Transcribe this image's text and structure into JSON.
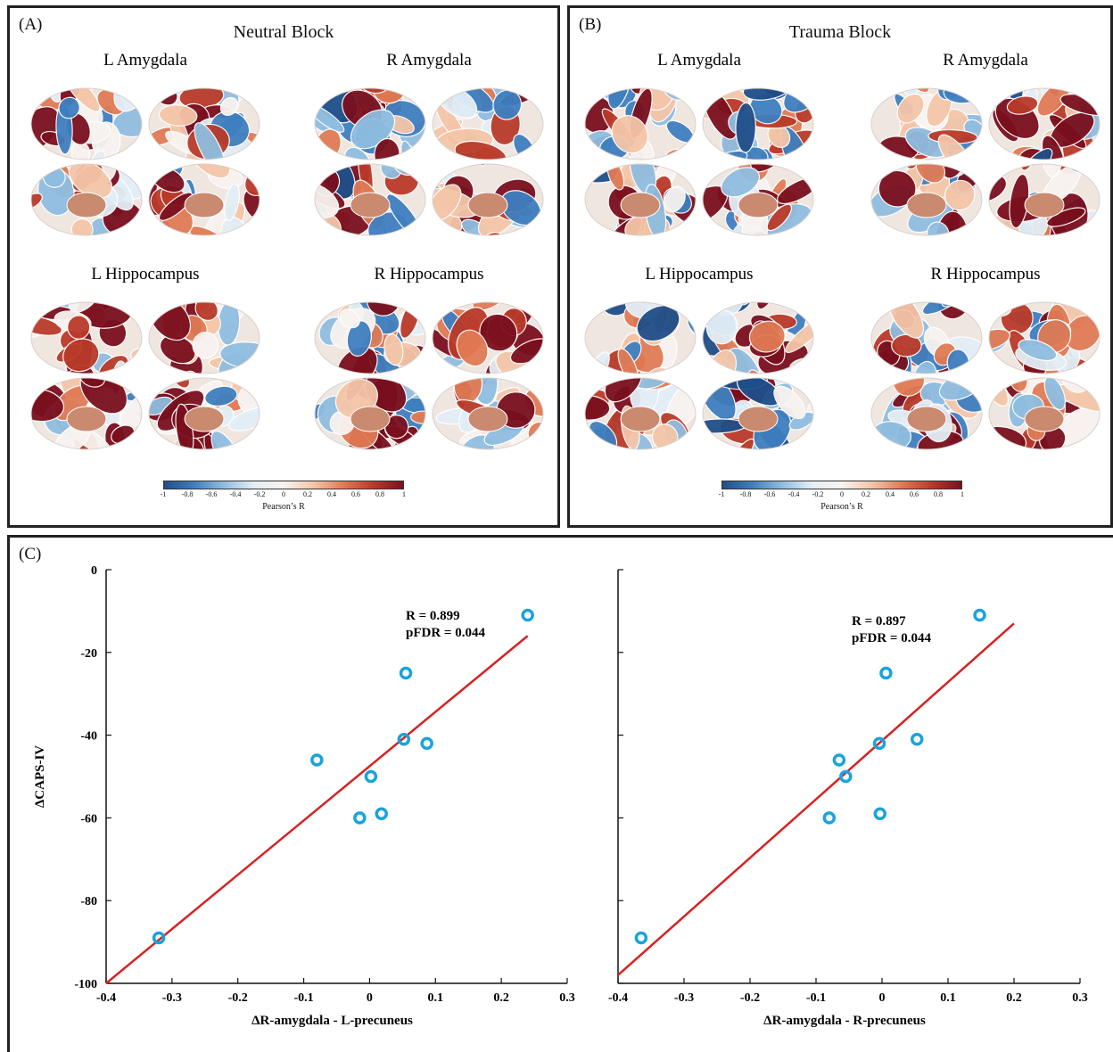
{
  "panelA": {
    "label": "(A)",
    "title": "Neutral Block",
    "regions": [
      "L Amygdala",
      "R Amygdala",
      "L Hippocampus",
      "R Hippocampus"
    ],
    "colorbar_ticks": [
      "-1",
      "-0.8",
      "-0.6",
      "-0.4",
      "-0.2",
      "0",
      "0.2",
      "0.4",
      "0.6",
      "0.8",
      "1"
    ],
    "colorbar_title": "Pearson’s R"
  },
  "panelB": {
    "label": "(B)",
    "title": "Trauma Block",
    "regions": [
      "L Amygdala",
      "R Amygdala",
      "L Hippocampus",
      "R Hippocampus"
    ],
    "colorbar_ticks": [
      "-1",
      "-0.8",
      "-0.6",
      "-0.4",
      "-0.2",
      "0",
      "0.2",
      "0.4",
      "0.6",
      "0.8",
      "1"
    ],
    "colorbar_title": "Pearson’s R"
  },
  "panelC": {
    "label": "(C)"
  },
  "colors": {
    "point": "#1aa3dc",
    "fit_line": "#d62222",
    "colormap": [
      "#1f4e8a",
      "#3f7fbf",
      "#8fbde0",
      "#e2eef6",
      "#f7f3f0",
      "#f4c6a8",
      "#e07b55",
      "#b93a2a",
      "#7a0f1e"
    ]
  },
  "chart_data": [
    {
      "type": "scatter",
      "xlabel": "ΔR-amygdala - L-precuneus",
      "ylabel": "ΔCAPS-IV",
      "xlim": [
        -0.4,
        0.3
      ],
      "ylim": [
        -100,
        0
      ],
      "xticks": [
        "-0.4",
        "-0.3",
        "-0.2",
        "-0.1",
        "0",
        "0.1",
        "0.2",
        "0.3"
      ],
      "yticks": [
        "0",
        "-20",
        "-40",
        "-60",
        "-80",
        "-100"
      ],
      "annotation": [
        "R = 0.899",
        "pFDR = 0.044"
      ],
      "points": [
        {
          "x": -0.32,
          "y": -89
        },
        {
          "x": -0.08,
          "y": -46
        },
        {
          "x": -0.015,
          "y": -60
        },
        {
          "x": 0.002,
          "y": -50
        },
        {
          "x": 0.018,
          "y": -59
        },
        {
          "x": 0.052,
          "y": -41
        },
        {
          "x": 0.055,
          "y": -25
        },
        {
          "x": 0.087,
          "y": -42
        },
        {
          "x": 0.24,
          "y": -11
        }
      ],
      "fit_line": {
        "x": [
          -0.4,
          0.24
        ],
        "y": [
          -100,
          -16
        ]
      }
    },
    {
      "type": "scatter",
      "xlabel": "ΔR-amygdala - R-precuneus",
      "ylabel": "",
      "xlim": [
        -0.4,
        0.3
      ],
      "ylim": [
        -100,
        0
      ],
      "xticks": [
        "-0.4",
        "-0.3",
        "-0.2",
        "-0.1",
        "0",
        "0.1",
        "0.2",
        "0.3"
      ],
      "yticks": [],
      "annotation": [
        "R = 0.897",
        "pFDR = 0.044"
      ],
      "points": [
        {
          "x": -0.365,
          "y": -89
        },
        {
          "x": -0.08,
          "y": -60
        },
        {
          "x": -0.065,
          "y": -46
        },
        {
          "x": -0.055,
          "y": -50
        },
        {
          "x": -0.003,
          "y": -59
        },
        {
          "x": -0.004,
          "y": -42
        },
        {
          "x": 0.006,
          "y": -25
        },
        {
          "x": 0.053,
          "y": -41
        },
        {
          "x": 0.148,
          "y": -11
        }
      ],
      "fit_line": {
        "x": [
          -0.4,
          0.2
        ],
        "y": [
          -98,
          -13
        ]
      }
    }
  ]
}
